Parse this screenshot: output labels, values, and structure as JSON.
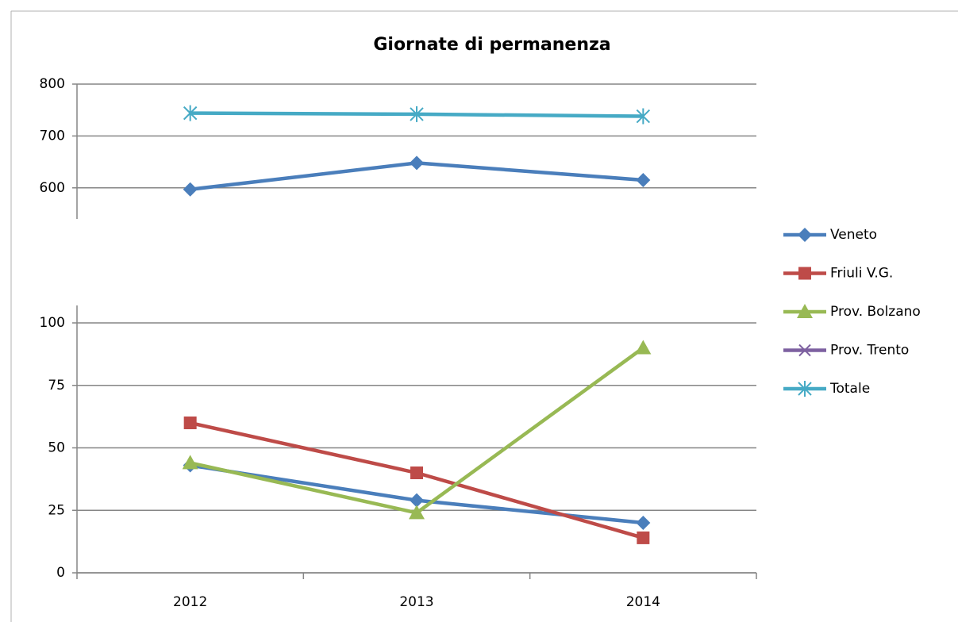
{
  "chart_data": [
    {
      "type": "line",
      "title": "Giornate di permanenza",
      "ylim": [
        540,
        800
      ],
      "yticks": [
        600,
        700,
        800
      ],
      "grid": true,
      "series": [
        {
          "color": "#4a7ebb",
          "marker": "diamond",
          "values": [
            597,
            648,
            615
          ]
        },
        {
          "color": "#46aac5",
          "marker": "asterisk",
          "values": [
            744,
            742,
            738
          ]
        }
      ]
    },
    {
      "type": "line",
      "categories": [
        "2012",
        "2013",
        "2014"
      ],
      "ylim": [
        0,
        100
      ],
      "yticks": [
        0,
        25,
        50,
        75,
        100
      ],
      "grid": true,
      "legend": "right",
      "series": [
        {
          "name": "Veneto",
          "color": "#4a7ebb",
          "marker": "diamond",
          "values": [
            43,
            29,
            20
          ]
        },
        {
          "name": "Friuli V.G.",
          "color": "#be4b48",
          "marker": "square",
          "values": [
            60,
            40,
            14
          ]
        },
        {
          "name": "Prov. Bolzano",
          "color": "#98b954",
          "marker": "triangle",
          "values": [
            44,
            24,
            90
          ]
        },
        {
          "name": "Prov. Trento",
          "color": "#7d60a0",
          "marker": "x",
          "values": [
            null,
            null,
            null
          ]
        },
        {
          "name": "Totale",
          "color": "#46aac5",
          "marker": "asterisk",
          "values": [
            null,
            null,
            null
          ]
        }
      ]
    }
  ]
}
